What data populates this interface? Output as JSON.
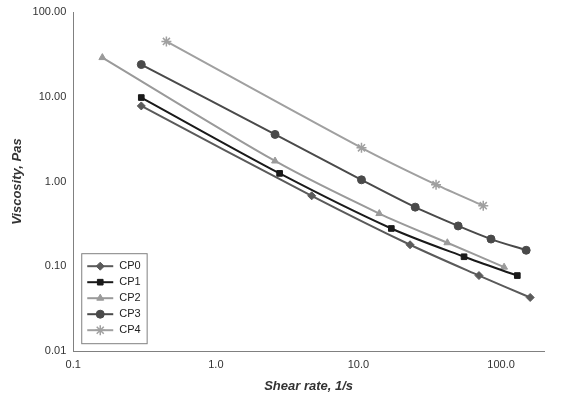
{
  "chart_data": {
    "type": "line",
    "x_label": "Shear rate, 1/s",
    "y_label": "Viscosity, Pas",
    "log": true,
    "grid": false,
    "legend": "lower left",
    "xlim": [
      0.1,
      200
    ],
    "xticks": [
      0.1,
      {
        "value": 1,
        "label": "1.0"
      },
      {
        "value": 10,
        "label": "10.0"
      },
      {
        "value": 100,
        "label": "100.0"
      }
    ],
    "ylim": [
      0.01,
      100
    ],
    "yticks": [
      {
        "value": 0.01,
        "label": "0.01"
      },
      {
        "value": 0.1,
        "label": "0.10"
      },
      {
        "value": 1,
        "label": "1.00"
      },
      {
        "value": 10,
        "label": "10.00"
      },
      {
        "value": 100,
        "label": "100.00"
      }
    ],
    "series": [
      {
        "name": "CP0",
        "color": "#5a5a5a",
        "marker": "diamond",
        "x": [
          0.3,
          4.7,
          23,
          70,
          160
        ],
        "values": [
          7.8,
          0.68,
          0.18,
          0.078,
          0.043
        ]
      },
      {
        "name": "CP1",
        "color": "#1a1a1a",
        "marker": "square",
        "x": [
          0.3,
          2.8,
          17,
          55,
          130
        ],
        "values": [
          9.8,
          1.25,
          0.28,
          0.13,
          0.078
        ]
      },
      {
        "name": "CP2",
        "color": "#9a9a9a",
        "marker": "triangle",
        "x": [
          0.16,
          2.6,
          14,
          42,
          105
        ],
        "values": [
          29,
          1.75,
          0.42,
          0.19,
          0.098
        ]
      },
      {
        "name": "CP3",
        "color": "#4a4a4a",
        "marker": "circle",
        "x": [
          0.3,
          2.6,
          10.5,
          25,
          50,
          85,
          150
        ],
        "values": [
          24,
          3.6,
          1.05,
          0.5,
          0.3,
          0.21,
          0.155
        ]
      },
      {
        "name": "CP4",
        "color": "#a0a0a0",
        "marker": "star",
        "x": [
          0.45,
          10.5,
          35,
          75
        ],
        "values": [
          45,
          2.5,
          0.92,
          0.52
        ]
      }
    ]
  }
}
